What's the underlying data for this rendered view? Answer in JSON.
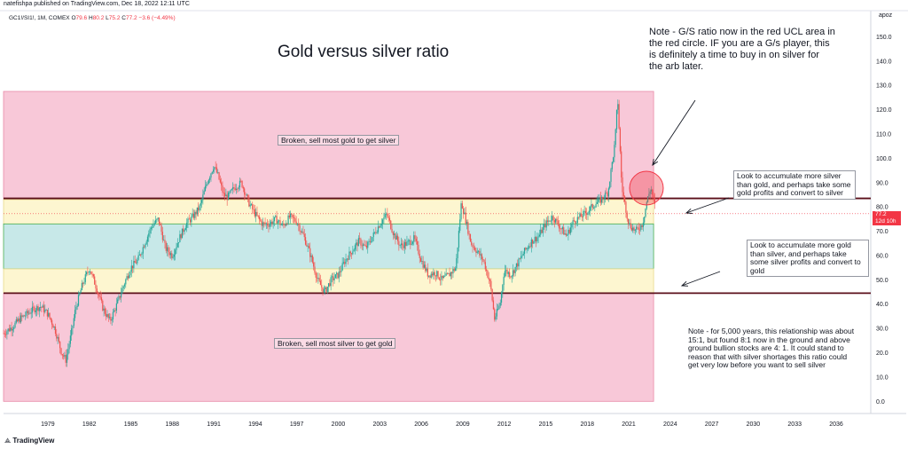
{
  "header": {
    "publish_line": "natefishpa published on TradingView.com, Dec 18, 2022 12:11 UTC"
  },
  "symbol": {
    "name": "GC1!/SI1!, 1M, COMEX",
    "ohlc_prefix": "O",
    "open": "79.6",
    "high_prefix": "H",
    "high": "80.2",
    "low_prefix": "L",
    "low": "75.2",
    "close_prefix": "C",
    "close": "77.2",
    "change": "−3.6 (−4.49%)"
  },
  "title": "Gold versus silver ratio",
  "notes": {
    "top": "Note - G/S ratio now in the red UCL area in the red circle.  IF you are a G/s player, this is definitely a time to buy in on silver for the arb later.",
    "bottom": "Note - for 5,000 years, this relationship was about 15:1, but found 8:1 now in the ground and above ground bullion stocks are 4: 1. It could stand to reason that with silver shortages this ratio could get very low before you want to sell silver"
  },
  "boxes": {
    "upper": "Look to accumulate more silver than gold, and perhaps take some gold profits and convert to silver",
    "lower": "Look to accumulate more gold than silver, and perhaps take some silver profits and convert to gold"
  },
  "zone_labels": {
    "top": "Broken, sell most gold to get silver",
    "bottom": "Broken, sell most silver to get gold"
  },
  "axis": {
    "unit": "apoz",
    "price_tag": "77.2",
    "countdown": "12d 10h"
  },
  "footer": {
    "logo": "TradingView"
  },
  "colors": {
    "red_zone": "#f8c8d8",
    "yellow_zone": "#fdf6d0",
    "teal_zone": "#c7e8e8",
    "candle_up": "#26a69a",
    "candle_down": "#ef5350",
    "dark_line": "#5b0f1a"
  },
  "chart_data": {
    "type": "line",
    "title": "Gold versus silver ratio",
    "xlabel": "",
    "ylabel": "",
    "ylim": [
      -5,
      160
    ],
    "xlim": [
      1975.8,
      2038.5
    ],
    "y_ticks": [
      0,
      10,
      20,
      30,
      40,
      50,
      60,
      70,
      80,
      90,
      100,
      110,
      120,
      130,
      140,
      150
    ],
    "y_tick_labels": [
      "0.0",
      "10.0",
      "20.0",
      "30.0",
      "40.0",
      "50.0",
      "60.0",
      "70.0",
      "80.0",
      "90.0",
      "100.0",
      "110.0",
      "120.0",
      "130.0",
      "140.0",
      "150.0"
    ],
    "x_ticks": [
      1979,
      1982,
      1985,
      1988,
      1991,
      1994,
      1997,
      2000,
      2003,
      2006,
      2009,
      2012,
      2015,
      2018,
      2021,
      2024,
      2027,
      2030,
      2033,
      2036
    ],
    "zones": [
      {
        "name": "upper broken zone",
        "y0": 83,
        "y1": 127.5,
        "x0": 1975.8,
        "x1": 2022.8
      },
      {
        "name": "upper caution band",
        "y0": 73,
        "y1": 83,
        "x0": 1975.8,
        "x1": 2022.8
      },
      {
        "name": "middle band",
        "y0": 54.5,
        "y1": 73,
        "x0": 1975.8,
        "x1": 2022.8
      },
      {
        "name": "lower caution band",
        "y0": 44.5,
        "y1": 54.5,
        "x0": 1975.8,
        "x1": 2022.8
      },
      {
        "name": "lower broken zone",
        "y0": 0,
        "y1": 44.5,
        "x0": 1975.8,
        "x1": 2022.8
      }
    ],
    "limit_lines": [
      {
        "name": "upper control limit",
        "y": 83.5
      },
      {
        "name": "lower control limit",
        "y": 44.5
      }
    ],
    "series": [
      {
        "name": "GC1!/SI1! monthly",
        "x": [
          1975.8,
          1976.5,
          1977,
          1977.5,
          1978,
          1978.5,
          1979,
          1979.5,
          1980,
          1980.3,
          1980.7,
          1981,
          1981.5,
          1982,
          1982.5,
          1983,
          1983.5,
          1984,
          1984.5,
          1985,
          1985.5,
          1986,
          1986.5,
          1987,
          1987.5,
          1988,
          1988.5,
          1989,
          1989.5,
          1990,
          1990.5,
          1991,
          1991.3,
          1991.7,
          1992,
          1992.5,
          1993,
          1993.5,
          1994,
          1994.5,
          1995,
          1995.5,
          1996,
          1996.5,
          1997,
          1997.5,
          1998,
          1998.5,
          1999,
          1999.5,
          2000,
          2000.5,
          2001,
          2001.5,
          2002,
          2002.5,
          2003,
          2003.5,
          2004,
          2004.5,
          2005,
          2005.5,
          2006,
          2006.5,
          2007,
          2007.5,
          2008,
          2008.5,
          2008.9,
          2009.2,
          2009.6,
          2010,
          2010.5,
          2011,
          2011.3,
          2011.7,
          2012,
          2012.5,
          2013,
          2013.5,
          2014,
          2014.5,
          2015,
          2015.5,
          2016,
          2016.5,
          2017,
          2017.5,
          2018,
          2018.5,
          2019,
          2019.5,
          2020,
          2020.2,
          2020.5,
          2021,
          2021.5,
          2022,
          2022.3,
          2022.6,
          2022.9
        ],
        "values": [
          28,
          31,
          34,
          36,
          38,
          39,
          36,
          30,
          20,
          17,
          28,
          38,
          48,
          55,
          47,
          38,
          33,
          40,
          48,
          55,
          58,
          65,
          72,
          75,
          63,
          60,
          67,
          73,
          76,
          80,
          90,
          97,
          93,
          85,
          84,
          88,
          90,
          82,
          77,
          73,
          73,
          75,
          72,
          76,
          74,
          68,
          60,
          50,
          45,
          50,
          52,
          58,
          62,
          66,
          63,
          68,
          73,
          77,
          69,
          64,
          65,
          67,
          58,
          52,
          53,
          50,
          52,
          55,
          82,
          75,
          65,
          62,
          58,
          48,
          34,
          40,
          54,
          52,
          57,
          62,
          66,
          68,
          73,
          76,
          72,
          68,
          74,
          76,
          78,
          81,
          83,
          86,
          106,
          125,
          88,
          73,
          70,
          73,
          82,
          88,
          80
        ]
      }
    ]
  }
}
